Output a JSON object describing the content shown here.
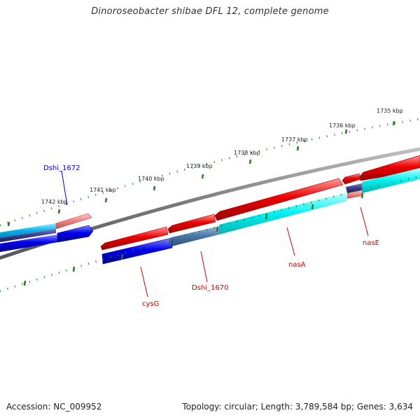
{
  "title": "Dinoroseobacter shibae DFL 12, complete genome",
  "footer": {
    "accession": "Accession: NC_009952",
    "summary": "Topology: circular; Length: 3,789,584 bp; Genes: 3,634"
  },
  "ruler": {
    "labels": [
      "1735 kbp",
      "1736 kbp",
      "1737 kbp",
      "1738 kbp",
      "1739 kbp",
      "1740 kbp",
      "1741 kbp",
      "1742 kbp"
    ]
  },
  "gene_labels": [
    {
      "name": "Dshi_1672",
      "color": "#0000cc"
    },
    {
      "name": "nasE",
      "color": "#cc0000"
    },
    {
      "name": "nasA",
      "color": "#cc0000"
    },
    {
      "name": "Dshi_1670",
      "color": "#cc0000"
    },
    {
      "name": "cysG",
      "color": "#cc0000"
    }
  ],
  "colors": {
    "forward_gene": "#ee0000",
    "reverse_gene": "#0000ee",
    "forward_cds": "#00eeee",
    "reverse_cds": "#00aadd",
    "selected_gene": "#f08080",
    "backbone": "#808080",
    "ticks": "#2a7a2a"
  }
}
